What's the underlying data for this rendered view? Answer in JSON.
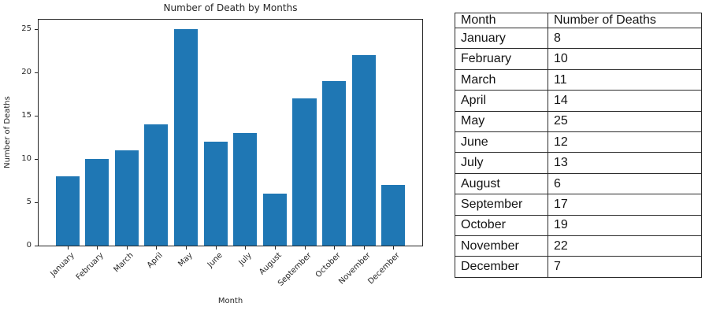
{
  "chart_data": {
    "type": "bar",
    "title": "Number of Death by Months",
    "xlabel": "Month",
    "ylabel": "Number of Deaths",
    "categories": [
      "January",
      "February",
      "March",
      "April",
      "May",
      "June",
      "July",
      "August",
      "September",
      "October",
      "November",
      "December"
    ],
    "values": [
      8,
      10,
      11,
      14,
      25,
      12,
      13,
      6,
      17,
      19,
      22,
      7
    ],
    "ylim": [
      0,
      26.25
    ],
    "yticks": [
      0,
      5,
      10,
      15,
      20,
      25
    ],
    "x_tick_rotation": 45,
    "grid": false,
    "legend": "none",
    "bar_color": "#1f77b4",
    "axis_color": "#262626"
  },
  "table": {
    "headers": [
      "Month",
      "Number of Deaths"
    ],
    "rows": [
      [
        "January",
        "8"
      ],
      [
        "February",
        "10"
      ],
      [
        "March",
        "11"
      ],
      [
        "April",
        "14"
      ],
      [
        "May",
        "25"
      ],
      [
        "June",
        "12"
      ],
      [
        "July",
        "13"
      ],
      [
        "August",
        "6"
      ],
      [
        "September",
        "17"
      ],
      [
        "October",
        "19"
      ],
      [
        "November",
        "22"
      ],
      [
        "December",
        "7"
      ]
    ]
  }
}
